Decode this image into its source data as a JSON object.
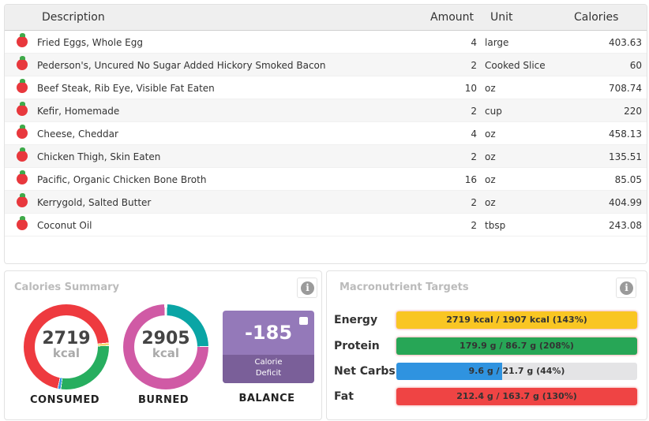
{
  "table": {
    "headers": {
      "description": "Description",
      "amount": "Amount",
      "unit": "Unit",
      "calories": "Calories"
    },
    "rows": [
      {
        "description": "Fried Eggs, Whole Egg",
        "amount": "4",
        "unit": "large",
        "calories": "403.63"
      },
      {
        "description": "Pederson's, Uncured No Sugar Added Hickory Smoked Bacon",
        "amount": "2",
        "unit": "Cooked Slice",
        "calories": "60"
      },
      {
        "description": "Beef Steak, Rib Eye, Visible Fat Eaten",
        "amount": "10",
        "unit": "oz",
        "calories": "708.74"
      },
      {
        "description": "Kefir, Homemade",
        "amount": "2",
        "unit": "cup",
        "calories": "220"
      },
      {
        "description": "Cheese, Cheddar",
        "amount": "4",
        "unit": "oz",
        "calories": "458.13"
      },
      {
        "description": "Chicken Thigh, Skin Eaten",
        "amount": "2",
        "unit": "oz",
        "calories": "135.51"
      },
      {
        "description": "Pacific, Organic Chicken Bone Broth",
        "amount": "16",
        "unit": "oz",
        "calories": "85.05"
      },
      {
        "description": "Kerrygold, Salted Butter",
        "amount": "2",
        "unit": "oz",
        "calories": "404.99"
      },
      {
        "description": "Coconut Oil",
        "amount": "2",
        "unit": "tbsp",
        "calories": "243.08"
      }
    ]
  },
  "calories_summary": {
    "title": "Calories Summary",
    "info_icon": "i",
    "consumed": {
      "value": "2719",
      "unit": "kcal",
      "label": "CONSUMED"
    },
    "burned": {
      "value": "2905",
      "unit": "kcal",
      "label": "BURNED"
    },
    "balance": {
      "value": "-185",
      "line1": "Calorie",
      "line2": "Deficit",
      "label": "BALANCE"
    }
  },
  "macros": {
    "title": "Macronutrient Targets",
    "info_icon": "i",
    "items": [
      {
        "label": "Energy",
        "text": "2719 kcal / 1907 kcal (143%)",
        "percent": 143,
        "color": "#f9c623"
      },
      {
        "label": "Protein",
        "text": "179.9 g / 86.7 g (208%)",
        "percent": 208,
        "color": "#27a656"
      },
      {
        "label": "Net Carbs",
        "text": "9.6 g / 21.7 g (44%)",
        "percent": 44,
        "color": "#2f93e0"
      },
      {
        "label": "Fat",
        "text": "212.4 g / 163.7 g (130%)",
        "percent": 130,
        "color": "#ef4444"
      }
    ]
  },
  "colors": {
    "consumed_fat": "#ee3a3f",
    "consumed_protein": "#27ae5f",
    "consumed_carbs": "#2f93e0",
    "burned_main": "#d05aa5",
    "burned_teal": "#0aa5a5",
    "balance": "#9479b9"
  }
}
